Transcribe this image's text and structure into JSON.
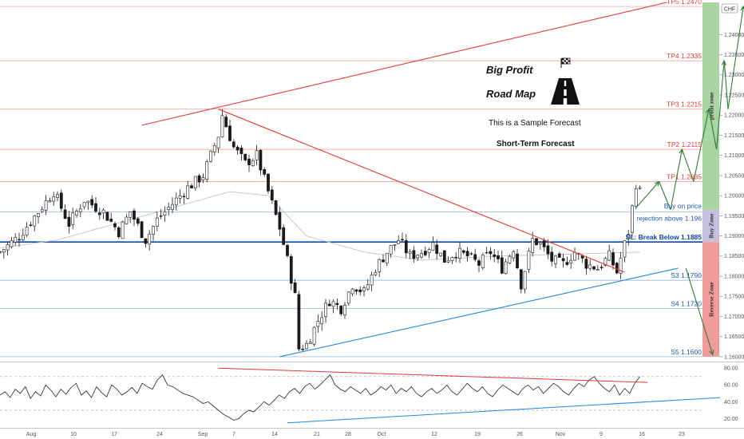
{
  "symbol_badge": "CHF",
  "annotations": {
    "title_line1": "Big Profit",
    "title_line2": "Road Map",
    "subtitle1": "This is a Sample Forecast",
    "subtitle2": "Short-Term Forecast"
  },
  "zones": [
    {
      "label": "profit zone",
      "from": 1.1965,
      "to": 1.248,
      "color": "#a8d5a2"
    },
    {
      "label": "Buy Zone",
      "from": 1.1885,
      "to": 1.1965,
      "color": "#c5c0e0"
    },
    {
      "label": "Reverse Zone",
      "from": 1.16,
      "to": 1.1885,
      "color": "#f19a9a"
    }
  ],
  "levels": [
    {
      "label": "TP5 1.2470",
      "value": 1.247,
      "color": "#e53935"
    },
    {
      "label": "TP4 1.2335",
      "value": 1.2335,
      "color": "#e53935"
    },
    {
      "label": "TP3 1.2215",
      "value": 1.2215,
      "color": "#e53935"
    },
    {
      "label": "TP2 1.2115",
      "value": 1.2115,
      "color": "#e53935"
    },
    {
      "label": "TP1 1.2035",
      "value": 1.2035,
      "color": "#e53935"
    },
    {
      "label": "Buy on price",
      "value": 1.1965,
      "color": "#1e5aa8",
      "line": false
    },
    {
      "label": "rejection above 1.196",
      "value": 1.196,
      "color": "#1e5aa8"
    },
    {
      "label": "SL: Break Below 1.1885",
      "value": 1.1885,
      "color": "#0d47a1",
      "bold": true
    },
    {
      "label": "S3 1.1790",
      "value": 1.179,
      "color": "#1e5aa8"
    },
    {
      "label": "S4 1.1720",
      "value": 1.172,
      "color": "#1e5aa8"
    },
    {
      "label": "S5 1.1600",
      "value": 1.16,
      "color": "#1e5aa8"
    }
  ],
  "chart_data": [
    {
      "type": "candlestick",
      "ylim": [
        1.159,
        1.248
      ],
      "y_ticks": [
        "1.24000",
        "1.23500",
        "1.23000",
        "1.22500",
        "1.22000",
        "1.21500",
        "1.21000",
        "1.20500",
        "1.20000",
        "1.19500",
        "1.19000",
        "1.18500",
        "1.18000",
        "1.17500",
        "1.17000",
        "1.16500",
        "1.16000"
      ],
      "x_ticks": [
        "Aug",
        "10",
        "17",
        "24",
        "Sep",
        "7",
        "14",
        "21",
        "28",
        "Oct",
        "12",
        "19",
        "26",
        "Nov",
        "9",
        "16",
        "23"
      ],
      "close_path": [
        [
          0,
          1.186
        ],
        [
          5,
          1.19
        ],
        [
          10,
          1.196
        ],
        [
          14,
          1.201
        ],
        [
          18,
          1.193
        ],
        [
          22,
          1.199
        ],
        [
          27,
          1.196
        ],
        [
          31,
          1.191
        ],
        [
          34,
          1.196
        ],
        [
          38,
          1.189
        ],
        [
          41,
          1.194
        ],
        [
          45,
          1.198
        ],
        [
          49,
          1.202
        ],
        [
          53,
          1.205
        ],
        [
          57,
          1.215
        ],
        [
          58,
          1.22
        ],
        [
          61,
          1.212
        ],
        [
          64,
          1.208
        ],
        [
          67,
          1.21
        ],
        [
          70,
          1.201
        ],
        [
          73,
          1.192
        ],
        [
          75,
          1.184
        ],
        [
          77,
          1.175
        ],
        [
          78,
          1.162
        ],
        [
          80,
          1.163
        ],
        [
          83,
          1.169
        ],
        [
          86,
          1.174
        ],
        [
          89,
          1.172
        ],
        [
          92,
          1.178
        ],
        [
          95,
          1.176
        ],
        [
          98,
          1.182
        ],
        [
          101,
          1.186
        ],
        [
          104,
          1.189
        ],
        [
          107,
          1.185
        ],
        [
          110,
          1.186
        ],
        [
          113,
          1.188
        ],
        [
          116,
          1.184
        ],
        [
          119,
          1.186
        ],
        [
          122,
          1.185
        ],
        [
          125,
          1.183
        ],
        [
          128,
          1.186
        ],
        [
          131,
          1.182
        ],
        [
          134,
          1.187
        ],
        [
          136,
          1.178
        ],
        [
          139,
          1.189
        ],
        [
          141,
          1.188
        ],
        [
          144,
          1.184
        ],
        [
          147,
          1.183
        ],
        [
          150,
          1.186
        ],
        [
          153,
          1.183
        ],
        [
          156,
          1.182
        ],
        [
          159,
          1.185
        ],
        [
          161,
          1.181
        ],
        [
          163,
          1.188
        ],
        [
          164,
          1.191
        ],
        [
          166,
          1.203
        ],
        [
          167,
          1.201
        ]
      ],
      "ma_path": [
        [
          0,
          1.187
        ],
        [
          15,
          1.189
        ],
        [
          30,
          1.193
        ],
        [
          45,
          1.197
        ],
        [
          60,
          1.201
        ],
        [
          70,
          1.2
        ],
        [
          80,
          1.19
        ],
        [
          95,
          1.186
        ],
        [
          110,
          1.184
        ],
        [
          130,
          1.185
        ],
        [
          150,
          1.1855
        ],
        [
          167,
          1.186
        ]
      ],
      "trendlines": [
        {
          "from": [
            37,
            1.2175
          ],
          "to": [
            174,
            1.248
          ],
          "color": "#e53935"
        },
        {
          "from": [
            57,
            1.2215
          ],
          "to": [
            163,
            1.181
          ],
          "color": "#e53935"
        },
        {
          "from": [
            73,
            1.16
          ],
          "to": [
            177,
            1.182
          ],
          "color": "#1e88e5"
        }
      ],
      "forecast_path": [
        [
          166,
          1.197
        ],
        [
          172,
          1.2035
        ],
        [
          175,
          1.1965
        ],
        [
          178,
          1.2115
        ],
        [
          181,
          1.2035
        ],
        [
          185,
          1.2215
        ],
        [
          187,
          1.2115
        ],
        [
          189,
          1.2335
        ],
        [
          190,
          1.2215
        ],
        [
          194,
          1.247
        ]
      ],
      "reverse_arrow": [
        [
          179,
          1.182
        ],
        [
          186,
          1.1605
        ]
      ]
    },
    {
      "type": "line",
      "name_hint": "oscillator",
      "ylim": [
        10,
        85
      ],
      "y_ticks": [
        "80.00",
        "60.00",
        "40.00",
        "20.00"
      ],
      "guides": [
        70,
        30
      ],
      "values": [
        48,
        52,
        45,
        55,
        50,
        58,
        44,
        52,
        47,
        60,
        54,
        46,
        55,
        49,
        57,
        62,
        48,
        53,
        45,
        58,
        51,
        46,
        60,
        55,
        48,
        52,
        57,
        50,
        62,
        58,
        55,
        66,
        72,
        60,
        58,
        54,
        50,
        48,
        46,
        42,
        38,
        40,
        35,
        30,
        25,
        22,
        18,
        20,
        26,
        30,
        28,
        34,
        40,
        36,
        42,
        48,
        44,
        52,
        56,
        50,
        58,
        62,
        55,
        60,
        66,
        72,
        60,
        55,
        52,
        58,
        54,
        50,
        56,
        48,
        52,
        58,
        54,
        60,
        50,
        56,
        52,
        58,
        50,
        46,
        52,
        56,
        50,
        54,
        60,
        52,
        48,
        55,
        62,
        56,
        52,
        58,
        50,
        46,
        54,
        60,
        56,
        52,
        48,
        56,
        60,
        54,
        58,
        50,
        56,
        62,
        58,
        52,
        48,
        56,
        62,
        58,
        66,
        70,
        62,
        56,
        52,
        60,
        48,
        56,
        50,
        62,
        70
      ],
      "trendlines": [
        {
          "from": [
            57,
            80
          ],
          "to": [
            169,
            63
          ],
          "color": "#e53935"
        },
        {
          "from": [
            75,
            15
          ],
          "to": [
            188,
            45
          ],
          "color": "#1e88e5"
        }
      ]
    }
  ]
}
